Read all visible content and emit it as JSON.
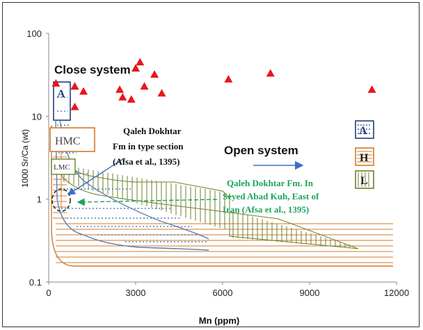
{
  "chart_data": {
    "type": "scatter",
    "xlabel": "Mn (ppm)",
    "ylabel": "1000 Sr/Ca (wt)",
    "x_range": [
      0,
      12000
    ],
    "y_range": [
      0.1,
      100
    ],
    "y_scale": "log",
    "x_ticks": [
      "0",
      "3000",
      "6000",
      "9000",
      "12000"
    ],
    "y_ticks": [
      "0.1",
      "1",
      "10",
      "100"
    ],
    "grid": false,
    "points": [
      {
        "x": 250,
        "y": 25
      },
      {
        "x": 900,
        "y": 23
      },
      {
        "x": 900,
        "y": 13
      },
      {
        "x": 1200,
        "y": 20
      },
      {
        "x": 2450,
        "y": 21
      },
      {
        "x": 2550,
        "y": 17
      },
      {
        "x": 2850,
        "y": 16
      },
      {
        "x": 3000,
        "y": 38
      },
      {
        "x": 3150,
        "y": 45
      },
      {
        "x": 3300,
        "y": 23
      },
      {
        "x": 3650,
        "y": 32
      },
      {
        "x": 3900,
        "y": 19
      },
      {
        "x": 6200,
        "y": 28
      },
      {
        "x": 7650,
        "y": 33
      },
      {
        "x": 11150,
        "y": 21
      }
    ],
    "annotations": {
      "close_system": "Close system",
      "open_system": "Open system",
      "box_a": "A",
      "box_hmc": "HMC",
      "box_lmc": "LMC",
      "type_section": "Qaleh Dokhtar Fm in type section (Afsa et al., 1395)",
      "type_section_lines": [
        "Qaleh Dokhtar",
        "Fm in type section",
        "(Afsa et al., 1395)"
      ],
      "seyed_lines": [
        "Qaleh Dokhtar Fm. In",
        "Seyed Abad Kuh, East of",
        "Iran (Afsa et al., 1395)"
      ]
    },
    "legend": [
      {
        "label": "A",
        "style": "dotted",
        "color": "#1f3f7a"
      },
      {
        "label": "H",
        "style": "horizontal",
        "color": "#d07a2a"
      },
      {
        "label": "L",
        "style": "vertical",
        "color": "#6b7f2a"
      }
    ],
    "colors": {
      "points": "#e8161b",
      "aragonite": "#1f3f7a",
      "hmc": "#d07a2a",
      "lmc": "#6b7f2a",
      "blue_trend": "#5a7fb5",
      "green_text": "#1ea35b",
      "arrow": "#3a6fc9"
    }
  }
}
